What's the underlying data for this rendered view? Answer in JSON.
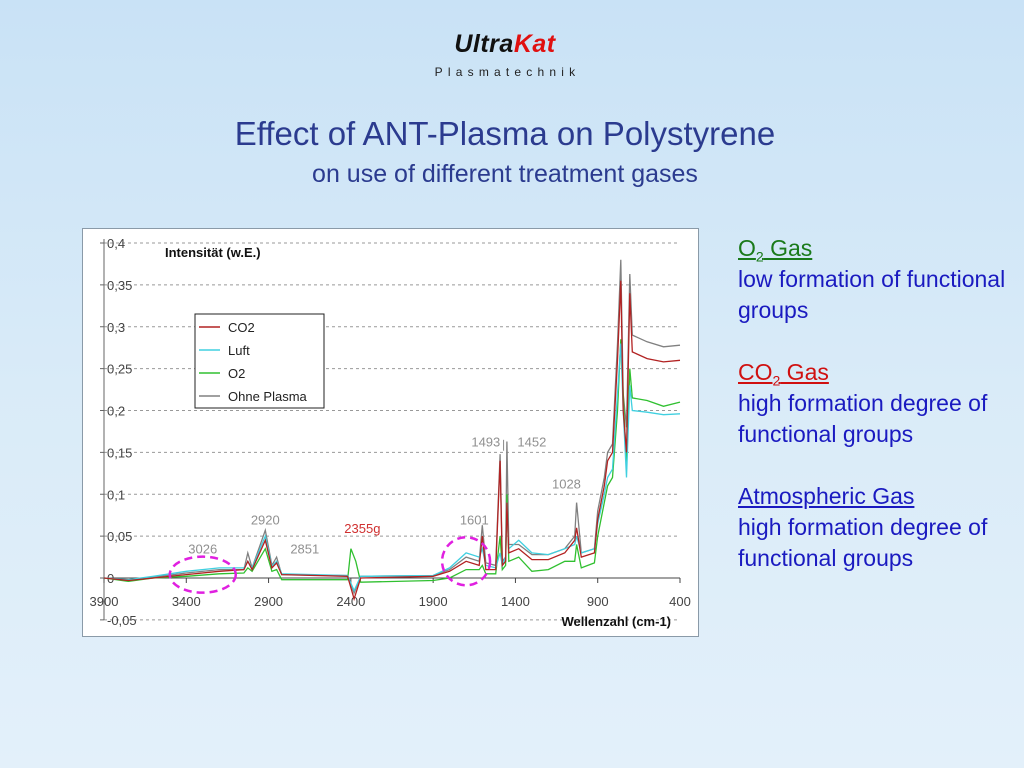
{
  "logo": {
    "part1": "Ultra",
    "part2": "Kat",
    "tagline": "Plasmatechnik"
  },
  "title": "Effect of ANT-Plasma on Polystyrene",
  "subtitle": "on use of different treatment gases",
  "side": {
    "items": [
      {
        "gas": "O",
        "sub": "2",
        "suffix": " Gas",
        "color": "#1a7a1a",
        "text": "low formation of functional groups"
      },
      {
        "gas": "CO",
        "sub": "2",
        "suffix": " Gas",
        "color": "#d01010",
        "text": "high formation degree of functional groups"
      },
      {
        "gas": "Atmospheric Gas",
        "sub": "",
        "suffix": "",
        "color": "#1a1ac0",
        "text": "high formation degree of functional groups"
      }
    ]
  },
  "chart_data": {
    "type": "line",
    "ylabel": "Intensität (w.E.)",
    "xlabel": "Wellenzahl (cm-1)",
    "xlim": [
      3900,
      400
    ],
    "ylim": [
      -0.05,
      0.4
    ],
    "xticks": [
      3900,
      3400,
      2900,
      2400,
      1900,
      1400,
      900,
      400
    ],
    "xtick_labels": [
      "3900",
      "3400",
      "2900",
      "2400",
      "1900",
      "1400",
      "900",
      "400"
    ],
    "yticks": [
      -0.05,
      0,
      0.05,
      0.1,
      0.15,
      0.2,
      0.25,
      0.3,
      0.35,
      0.4
    ],
    "ytick_labels": [
      "-0,05",
      "0",
      "0,05",
      "0,1",
      "0,15",
      "0,2",
      "0,25",
      "0,3",
      "0,35",
      "0,4"
    ],
    "grid": true,
    "legend_position": "upper-left",
    "series": [
      {
        "name": "CO2",
        "color": "#b22222",
        "points": [
          [
            3900,
            0
          ],
          [
            3750,
            -0.003
          ],
          [
            3600,
            0
          ],
          [
            3400,
            0.004
          ],
          [
            3200,
            0.008
          ],
          [
            3050,
            0.01
          ],
          [
            3026,
            0.02
          ],
          [
            3000,
            0.01
          ],
          [
            2920,
            0.045
          ],
          [
            2880,
            0.012
          ],
          [
            2851,
            0.018
          ],
          [
            2820,
            0.004
          ],
          [
            2420,
            0.002
          ],
          [
            2380,
            -0.025
          ],
          [
            2340,
            0
          ],
          [
            1900,
            0.002
          ],
          [
            1800,
            0.008
          ],
          [
            1700,
            0.02
          ],
          [
            1620,
            0.015
          ],
          [
            1601,
            0.05
          ],
          [
            1580,
            0.01
          ],
          [
            1520,
            0.01
          ],
          [
            1493,
            0.14
          ],
          [
            1480,
            0.015
          ],
          [
            1460,
            0.02
          ],
          [
            1452,
            0.09
          ],
          [
            1440,
            0.03
          ],
          [
            1380,
            0.035
          ],
          [
            1300,
            0.022
          ],
          [
            1200,
            0.022
          ],
          [
            1100,
            0.03
          ],
          [
            1040,
            0.045
          ],
          [
            1028,
            0.06
          ],
          [
            1000,
            0.025
          ],
          [
            920,
            0.03
          ],
          [
            900,
            0.07
          ],
          [
            860,
            0.11
          ],
          [
            840,
            0.14
          ],
          [
            810,
            0.15
          ],
          [
            780,
            0.26
          ],
          [
            760,
            0.355
          ],
          [
            745,
            0.2
          ],
          [
            725,
            0.15
          ],
          [
            705,
            0.34
          ],
          [
            690,
            0.27
          ],
          [
            600,
            0.262
          ],
          [
            500,
            0.258
          ],
          [
            400,
            0.26
          ]
        ]
      },
      {
        "name": "Luft",
        "color": "#40d0e0",
        "points": [
          [
            3900,
            0
          ],
          [
            3750,
            -0.002
          ],
          [
            3600,
            0.002
          ],
          [
            3400,
            0.008
          ],
          [
            3200,
            0.012
          ],
          [
            3050,
            0.012
          ],
          [
            3026,
            0.02
          ],
          [
            3000,
            0.012
          ],
          [
            2920,
            0.05
          ],
          [
            2880,
            0.014
          ],
          [
            2851,
            0.02
          ],
          [
            2820,
            0.005
          ],
          [
            2420,
            0.003
          ],
          [
            2380,
            -0.015
          ],
          [
            2340,
            0.002
          ],
          [
            1900,
            0.003
          ],
          [
            1800,
            0.012
          ],
          [
            1700,
            0.03
          ],
          [
            1620,
            0.025
          ],
          [
            1601,
            0.035
          ],
          [
            1580,
            0.015
          ],
          [
            1520,
            0.012
          ],
          [
            1493,
            0.03
          ],
          [
            1480,
            0.015
          ],
          [
            1460,
            0.025
          ],
          [
            1452,
            0.09
          ],
          [
            1440,
            0.035
          ],
          [
            1380,
            0.045
          ],
          [
            1300,
            0.03
          ],
          [
            1200,
            0.028
          ],
          [
            1100,
            0.035
          ],
          [
            1040,
            0.04
          ],
          [
            1028,
            0.05
          ],
          [
            1000,
            0.03
          ],
          [
            920,
            0.035
          ],
          [
            900,
            0.065
          ],
          [
            860,
            0.1
          ],
          [
            840,
            0.12
          ],
          [
            810,
            0.13
          ],
          [
            780,
            0.22
          ],
          [
            760,
            0.28
          ],
          [
            745,
            0.2
          ],
          [
            725,
            0.12
          ],
          [
            705,
            0.23
          ],
          [
            690,
            0.2
          ],
          [
            600,
            0.198
          ],
          [
            500,
            0.195
          ],
          [
            400,
            0.196
          ]
        ]
      },
      {
        "name": "O2",
        "color": "#30c030",
        "points": [
          [
            3900,
            0
          ],
          [
            3750,
            -0.004
          ],
          [
            3600,
            0
          ],
          [
            3400,
            0.002
          ],
          [
            3200,
            0.005
          ],
          [
            3050,
            0.006
          ],
          [
            3026,
            0.012
          ],
          [
            3000,
            0.008
          ],
          [
            2920,
            0.035
          ],
          [
            2880,
            0.008
          ],
          [
            2851,
            0.01
          ],
          [
            2820,
            -0.002
          ],
          [
            2420,
            -0.002
          ],
          [
            2400,
            0.035
          ],
          [
            2370,
            0.02
          ],
          [
            2340,
            -0.005
          ],
          [
            1900,
            -0.003
          ],
          [
            1800,
            0
          ],
          [
            1700,
            0.01
          ],
          [
            1620,
            0.01
          ],
          [
            1601,
            0.015
          ],
          [
            1580,
            0.005
          ],
          [
            1520,
            0.005
          ],
          [
            1493,
            0.05
          ],
          [
            1480,
            0.01
          ],
          [
            1460,
            0.015
          ],
          [
            1452,
            0.1
          ],
          [
            1440,
            0.02
          ],
          [
            1380,
            0.025
          ],
          [
            1300,
            0.008
          ],
          [
            1200,
            0.01
          ],
          [
            1100,
            0.02
          ],
          [
            1040,
            0.02
          ],
          [
            1028,
            0.04
          ],
          [
            1000,
            0.012
          ],
          [
            920,
            0.018
          ],
          [
            900,
            0.05
          ],
          [
            860,
            0.09
          ],
          [
            840,
            0.11
          ],
          [
            810,
            0.12
          ],
          [
            780,
            0.2
          ],
          [
            760,
            0.285
          ],
          [
            745,
            0.22
          ],
          [
            725,
            0.13
          ],
          [
            705,
            0.25
          ],
          [
            690,
            0.215
          ],
          [
            600,
            0.212
          ],
          [
            500,
            0.205
          ],
          [
            400,
            0.21
          ]
        ]
      },
      {
        "name": "Ohne Plasma",
        "color": "#808080",
        "points": [
          [
            3900,
            0
          ],
          [
            3750,
            -0.002
          ],
          [
            3600,
            0.001
          ],
          [
            3400,
            0.006
          ],
          [
            3200,
            0.01
          ],
          [
            3050,
            0.01
          ],
          [
            3026,
            0.03
          ],
          [
            3000,
            0.012
          ],
          [
            2920,
            0.057
          ],
          [
            2880,
            0.015
          ],
          [
            2851,
            0.025
          ],
          [
            2820,
            0.004
          ],
          [
            2420,
            0.003
          ],
          [
            2380,
            -0.018
          ],
          [
            2340,
            0.002
          ],
          [
            1900,
            0.003
          ],
          [
            1800,
            0.01
          ],
          [
            1700,
            0.025
          ],
          [
            1620,
            0.02
          ],
          [
            1601,
            0.063
          ],
          [
            1580,
            0.018
          ],
          [
            1520,
            0.015
          ],
          [
            1493,
            0.148
          ],
          [
            1480,
            0.02
          ],
          [
            1460,
            0.025
          ],
          [
            1452,
            0.163
          ],
          [
            1440,
            0.04
          ],
          [
            1380,
            0.04
          ],
          [
            1300,
            0.028
          ],
          [
            1200,
            0.028
          ],
          [
            1100,
            0.035
          ],
          [
            1040,
            0.05
          ],
          [
            1028,
            0.09
          ],
          [
            1000,
            0.03
          ],
          [
            920,
            0.035
          ],
          [
            900,
            0.08
          ],
          [
            860,
            0.12
          ],
          [
            840,
            0.15
          ],
          [
            810,
            0.16
          ],
          [
            780,
            0.28
          ],
          [
            760,
            0.38
          ],
          [
            745,
            0.22
          ],
          [
            725,
            0.18
          ],
          [
            705,
            0.363
          ],
          [
            690,
            0.29
          ],
          [
            600,
            0.282
          ],
          [
            500,
            0.276
          ],
          [
            400,
            0.278
          ]
        ]
      }
    ],
    "annotations": [
      {
        "text": "3026",
        "x": 3300,
        "y": 0.029,
        "color": "#909090"
      },
      {
        "text": "2920",
        "x": 2920,
        "y": 0.064,
        "color": "#909090"
      },
      {
        "text": "2851",
        "x": 2680,
        "y": 0.029,
        "color": "#909090"
      },
      {
        "text": "2355g",
        "x": 2330,
        "y": 0.054,
        "color": "#d03030"
      },
      {
        "text": "1601",
        "x": 1650,
        "y": 0.064,
        "color": "#909090"
      },
      {
        "text": "1493",
        "x": 1580,
        "y": 0.157,
        "color": "#909090"
      },
      {
        "text": "1452",
        "x": 1300,
        "y": 0.157,
        "color": "#909090"
      },
      {
        "text": "1028",
        "x": 1090,
        "y": 0.107,
        "color": "#909090"
      }
    ]
  }
}
